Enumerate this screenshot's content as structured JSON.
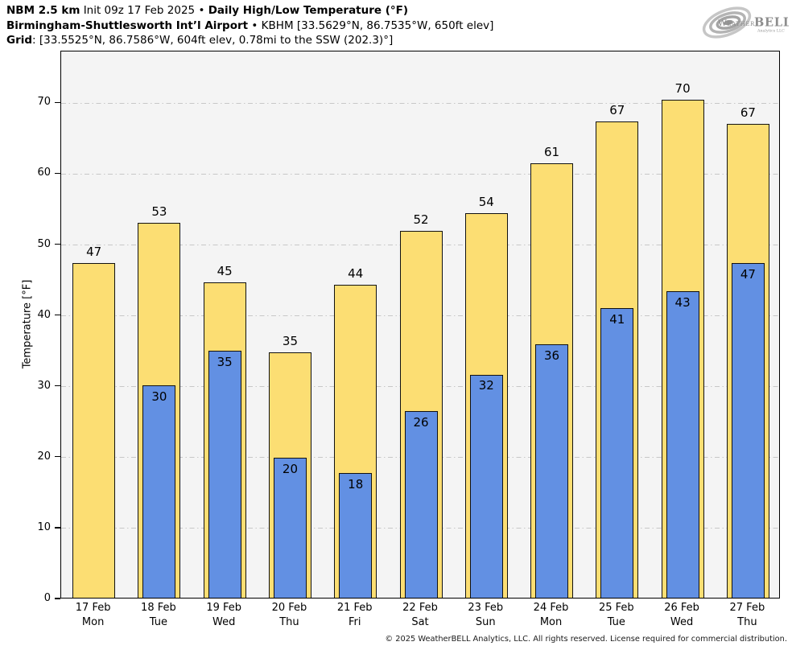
{
  "header": {
    "line1_model": "NBM 2.5 km",
    "line1_init": "Init 09z 17 Feb 2025",
    "separator": "•",
    "line1_product": "Daily High/Low Temperature (°F)",
    "line2_station": "Birmingham-Shuttlesworth Int’l Airport",
    "line2_details": "KBHM [33.5629°N, 86.7535°W, 650ft elev]",
    "line3_label": "Grid",
    "line3_details": ": [33.5525°N, 86.7586°W, 604ft elev, 0.78mi to the SSW (202.3)°]"
  },
  "logo": {
    "brand_weather": "Weather",
    "brand_bell": "BELL",
    "subtitle": "Analytics LLC"
  },
  "chart_data": {
    "type": "bar",
    "title": "Daily High/Low Temperature (°F)",
    "ylabel": "Temperature [°F]",
    "ylim": [
      0,
      77.3
    ],
    "yticks": [
      0,
      10,
      20,
      30,
      40,
      50,
      60,
      70
    ],
    "grid": {
      "axis": "y",
      "style": "dash-dot",
      "color": "#c7c7c7"
    },
    "plot_background": "#f4f4f4",
    "legend": "none",
    "categories": [
      {
        "date": "17 Feb",
        "day": "Mon"
      },
      {
        "date": "18 Feb",
        "day": "Tue"
      },
      {
        "date": "19 Feb",
        "day": "Wed"
      },
      {
        "date": "20 Feb",
        "day": "Thu"
      },
      {
        "date": "21 Feb",
        "day": "Fri"
      },
      {
        "date": "22 Feb",
        "day": "Sat"
      },
      {
        "date": "23 Feb",
        "day": "Sun"
      },
      {
        "date": "24 Feb",
        "day": "Mon"
      },
      {
        "date": "25 Feb",
        "day": "Tue"
      },
      {
        "date": "26 Feb",
        "day": "Wed"
      },
      {
        "date": "27 Feb",
        "day": "Thu"
      }
    ],
    "series": [
      {
        "name": "Daily High",
        "color": "#FCDE73",
        "values": [
          47,
          53,
          45,
          35,
          44,
          52,
          54,
          61,
          67,
          70,
          67
        ],
        "values_exact": [
          47.2,
          52.9,
          44.5,
          34.6,
          44.2,
          51.8,
          54.3,
          61.3,
          67.2,
          70.3,
          66.9
        ]
      },
      {
        "name": "Daily Low",
        "color": "#6290E3",
        "values": [
          null,
          30,
          35,
          20,
          18,
          26,
          32,
          36,
          41,
          43,
          47
        ],
        "values_exact": [
          null,
          30.0,
          34.9,
          19.8,
          17.6,
          26.3,
          31.5,
          35.8,
          40.9,
          43.2,
          47.2
        ]
      }
    ]
  },
  "footer": {
    "copyright": "© 2025 WeatherBELL Analytics, LLC. All rights reserved. License required for commercial distribution."
  }
}
